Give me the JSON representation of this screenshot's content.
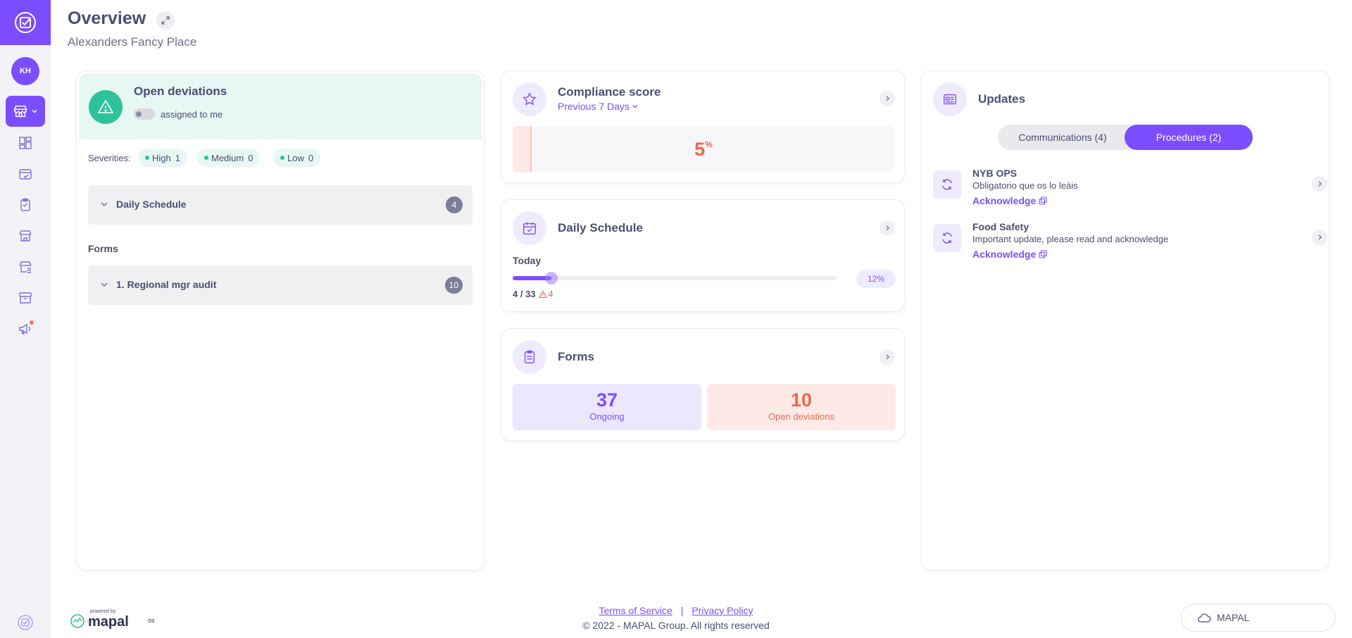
{
  "sidebar": {
    "avatar_initials": "KH"
  },
  "header": {
    "title": "Overview",
    "subtitle": "Alexanders Fancy Place"
  },
  "deviations": {
    "title": "Open deviations",
    "toggle_label": "assigned to me",
    "severities_label": "Severities:",
    "severities": [
      {
        "label": "High",
        "count": "1"
      },
      {
        "label": "Medium",
        "count": "0"
      },
      {
        "label": "Low",
        "count": "0"
      }
    ],
    "daily_schedule": {
      "label": "Daily Schedule",
      "count": "4"
    },
    "forms_heading": "Forms",
    "forms_items": [
      {
        "label": "1. Regional mgr audit",
        "count": "10"
      }
    ]
  },
  "compliance": {
    "title": "Compliance score",
    "period": "Previous 7 Days",
    "score": "5",
    "score_unit": "%",
    "score_fraction": 0.05
  },
  "daily_schedule": {
    "title": "Daily Schedule",
    "today_label": "Today",
    "progress_fraction": 0.12,
    "progress_label": "12%",
    "count": "4 / 33",
    "warnings": "4"
  },
  "forms": {
    "title": "Forms",
    "ongoing_value": "37",
    "ongoing_label": "Ongoing",
    "open_value": "10",
    "open_label": "Open deviations"
  },
  "updates": {
    "title": "Updates",
    "tabs": [
      {
        "label": "Communications (4)",
        "active": false
      },
      {
        "label": "Procedures (2)",
        "active": true
      }
    ],
    "items": [
      {
        "title": "NYB OPS",
        "description": "Obligatorio que os lo leáis",
        "action": "Acknowledge"
      },
      {
        "title": "Food Safety",
        "description": "Important update, please read and acknowledge",
        "action": "Acknowledge"
      }
    ]
  },
  "footer": {
    "powered_by": "powered by",
    "brand": "mapal",
    "brand_suffix": "os",
    "terms": "Terms of Service",
    "separator": "|",
    "privacy": "Privacy Policy",
    "copyright": "© 2022 - MAPAL Group. All rights reserved",
    "mapal_button": "MAPAL"
  },
  "colors": {
    "accent": "#7c4dff",
    "success": "#2ec29a",
    "danger": "#f0664a"
  }
}
